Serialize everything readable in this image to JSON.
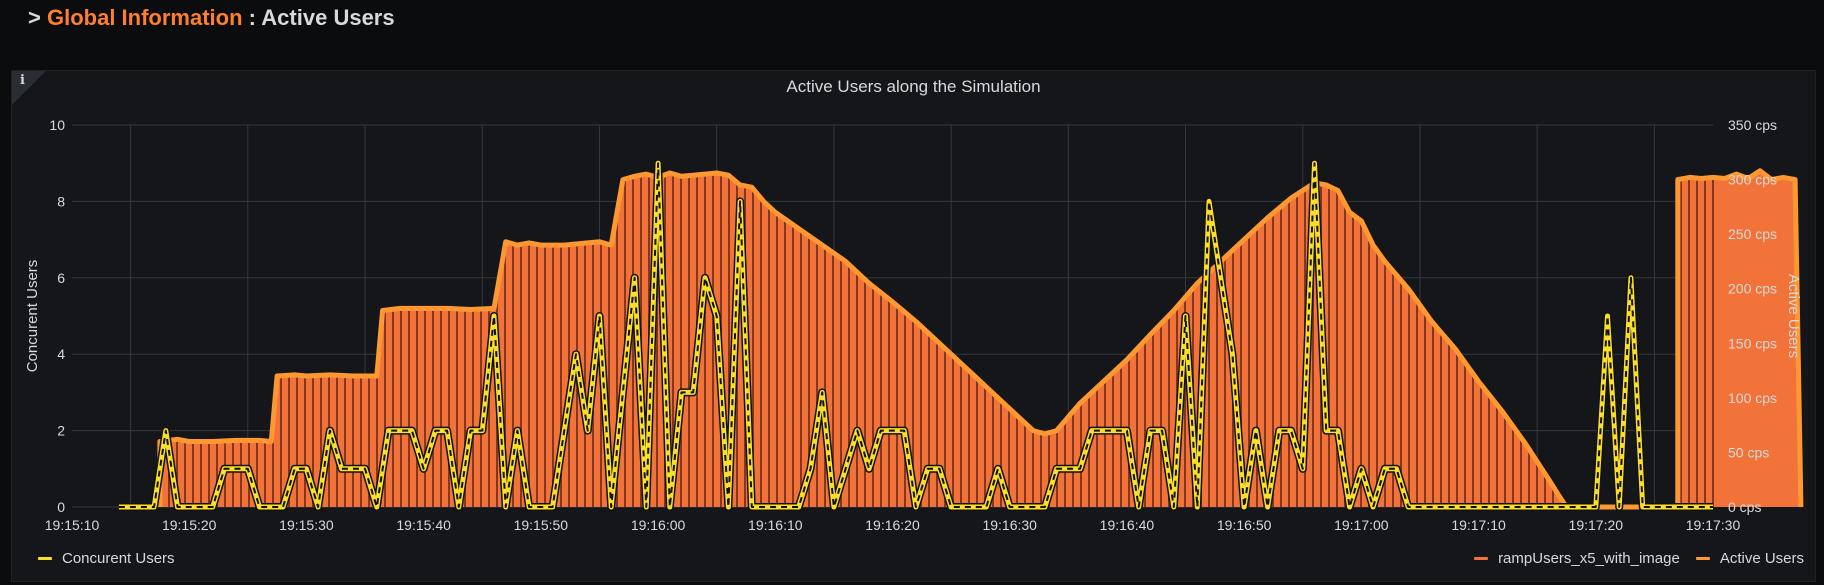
{
  "header": {
    "caret": ">",
    "section": "Global Information",
    "separator": ":",
    "subtitle": "Active Users"
  },
  "panel": {
    "info_icon": "i",
    "title": "Active Users along the Simulation"
  },
  "colors": {
    "background": "#0b0c0e",
    "panel_bg": "#141619",
    "grid": "#35383d",
    "text": "#d8d9da",
    "concurent_users": "#fade2a",
    "ramp_users_bars": "#f2733a",
    "active_users": "#ff9830"
  },
  "legend": {
    "concurent": "Concurent Users",
    "ramp": "rampUsers_x5_with_image",
    "active": "Active Users"
  },
  "chart_data": {
    "type": "line",
    "title": "Active Users along the Simulation",
    "xlabel": "",
    "ylabel_left": "Concurent Users",
    "ylabel_right": "Active Users",
    "ylim_left": [
      0,
      10
    ],
    "ylim_right": [
      0,
      350
    ],
    "yticks_left": [
      "0",
      "2",
      "4",
      "6",
      "8",
      "10"
    ],
    "yticks_right": [
      "0 cps",
      "50 cps",
      "100 cps",
      "150 cps",
      "200 cps",
      "250 cps",
      "300 cps",
      "350 cps"
    ],
    "xlim_seconds": [
      0,
      140
    ],
    "xticks": [
      "19:15:10",
      "19:15:20",
      "19:15:30",
      "19:15:40",
      "19:15:50",
      "19:16:00",
      "19:16:10",
      "19:16:20",
      "19:16:30",
      "19:16:40",
      "19:16:50",
      "19:17:00",
      "19:17:10",
      "19:17:20",
      "19:17:30"
    ],
    "grid": true,
    "legend_placement": "bottom",
    "series": [
      {
        "name": "Concurent Users",
        "axis": "left",
        "style": "line",
        "points": [
          [
            4,
            0
          ],
          [
            7,
            0
          ],
          [
            8,
            2
          ],
          [
            9,
            0
          ],
          [
            12,
            0
          ],
          [
            13,
            1
          ],
          [
            15,
            1
          ],
          [
            16,
            0
          ],
          [
            18,
            0
          ],
          [
            19,
            1
          ],
          [
            20,
            1
          ],
          [
            21,
            0
          ],
          [
            22,
            2
          ],
          [
            23,
            1
          ],
          [
            25,
            1
          ],
          [
            26,
            0
          ],
          [
            27,
            2
          ],
          [
            29,
            2
          ],
          [
            30,
            1
          ],
          [
            31,
            2
          ],
          [
            32,
            2
          ],
          [
            33,
            0
          ],
          [
            34,
            2
          ],
          [
            35,
            2
          ],
          [
            36,
            5
          ],
          [
            37,
            0
          ],
          [
            38,
            2
          ],
          [
            39,
            0
          ],
          [
            41,
            0
          ],
          [
            43,
            4
          ],
          [
            44,
            2
          ],
          [
            45,
            5
          ],
          [
            46,
            0
          ],
          [
            48,
            6
          ],
          [
            49,
            0
          ],
          [
            50,
            9
          ],
          [
            51,
            0
          ],
          [
            52,
            3
          ],
          [
            53,
            3
          ],
          [
            54,
            6
          ],
          [
            55,
            5
          ],
          [
            56,
            0
          ],
          [
            57,
            8
          ],
          [
            58,
            0
          ],
          [
            62,
            0
          ],
          [
            63,
            1
          ],
          [
            64,
            3
          ],
          [
            65,
            0
          ],
          [
            67,
            2
          ],
          [
            68,
            1
          ],
          [
            69,
            2
          ],
          [
            71,
            2
          ],
          [
            72,
            0
          ],
          [
            73,
            1
          ],
          [
            74,
            1
          ],
          [
            75,
            0
          ],
          [
            78,
            0
          ],
          [
            79,
            1
          ],
          [
            80,
            0
          ],
          [
            83,
            0
          ],
          [
            84,
            1
          ],
          [
            86,
            1
          ],
          [
            87,
            2
          ],
          [
            90,
            2
          ],
          [
            91,
            0
          ],
          [
            92,
            2
          ],
          [
            93,
            2
          ],
          [
            94,
            0
          ],
          [
            95,
            5
          ],
          [
            96,
            0
          ],
          [
            97,
            8
          ],
          [
            98,
            6
          ],
          [
            99,
            4
          ],
          [
            100,
            0
          ],
          [
            101,
            2
          ],
          [
            102,
            0
          ],
          [
            103,
            2
          ],
          [
            104,
            2
          ],
          [
            105,
            1
          ],
          [
            106,
            9
          ],
          [
            107,
            2
          ],
          [
            108,
            2
          ],
          [
            109,
            0
          ],
          [
            110,
            1
          ],
          [
            111,
            0
          ],
          [
            112,
            1
          ],
          [
            113,
            1
          ],
          [
            114,
            0
          ],
          [
            130,
            0
          ],
          [
            131,
            5
          ],
          [
            132,
            0
          ],
          [
            133,
            6
          ],
          [
            134,
            0
          ],
          [
            140,
            0
          ]
        ]
      },
      {
        "name": "Active Users",
        "axis": "right",
        "style": "filled-area",
        "points": [
          [
            7.5,
            0
          ],
          [
            7.5,
            60
          ],
          [
            9,
            62
          ],
          [
            10,
            60
          ],
          [
            12,
            60
          ],
          [
            14,
            61
          ],
          [
            16,
            61
          ],
          [
            17,
            60
          ],
          [
            17.5,
            120
          ],
          [
            19,
            121
          ],
          [
            20,
            120
          ],
          [
            22,
            121
          ],
          [
            24,
            120
          ],
          [
            26,
            120
          ],
          [
            26.5,
            180
          ],
          [
            28,
            182
          ],
          [
            30,
            182
          ],
          [
            32,
            182
          ],
          [
            34,
            181
          ],
          [
            36,
            182
          ],
          [
            37,
            243
          ],
          [
            38,
            240
          ],
          [
            39,
            242
          ],
          [
            40,
            240
          ],
          [
            42,
            240
          ],
          [
            44,
            242
          ],
          [
            45,
            243
          ],
          [
            46,
            240
          ],
          [
            47,
            300
          ],
          [
            48,
            303
          ],
          [
            49,
            305
          ],
          [
            50,
            302
          ],
          [
            51,
            306
          ],
          [
            52,
            303
          ],
          [
            53,
            304
          ],
          [
            55,
            306
          ],
          [
            56,
            304
          ],
          [
            57,
            295
          ],
          [
            58,
            293
          ],
          [
            59,
            280
          ],
          [
            60,
            270
          ],
          [
            62,
            255
          ],
          [
            64,
            240
          ],
          [
            66,
            225
          ],
          [
            68,
            205
          ],
          [
            70,
            188
          ],
          [
            72,
            170
          ],
          [
            74,
            150
          ],
          [
            76,
            130
          ],
          [
            78,
            110
          ],
          [
            80,
            90
          ],
          [
            82,
            70
          ],
          [
            83,
            67
          ],
          [
            84,
            70
          ],
          [
            86,
            95
          ],
          [
            88,
            115
          ],
          [
            90,
            135
          ],
          [
            92,
            158
          ],
          [
            94,
            180
          ],
          [
            96,
            205
          ],
          [
            98,
            225
          ],
          [
            100,
            245
          ],
          [
            102,
            265
          ],
          [
            104,
            283
          ],
          [
            105,
            290
          ],
          [
            106,
            297
          ],
          [
            107,
            295
          ],
          [
            108,
            290
          ],
          [
            109,
            270
          ],
          [
            110,
            262
          ],
          [
            111,
            240
          ],
          [
            112,
            225
          ],
          [
            114,
            200
          ],
          [
            116,
            170
          ],
          [
            118,
            145
          ],
          [
            120,
            115
          ],
          [
            122,
            88
          ],
          [
            124,
            58
          ],
          [
            126,
            25
          ],
          [
            127,
            8
          ],
          [
            127.5,
            0
          ],
          [
            137,
            0
          ],
          [
            137,
            300
          ],
          [
            138,
            302
          ],
          [
            139,
            301
          ],
          [
            140,
            302
          ],
          [
            141,
            301
          ],
          [
            142,
            305
          ],
          [
            143,
            301
          ],
          [
            144,
            308
          ],
          [
            145,
            300
          ],
          [
            146,
            302
          ],
          [
            147,
            300
          ],
          [
            147.5,
            0
          ]
        ]
      },
      {
        "name": "rampUsers_x5_with_image",
        "axis": "right",
        "style": "bars",
        "note": "dense vertical stripes filling the Active Users area"
      }
    ]
  }
}
